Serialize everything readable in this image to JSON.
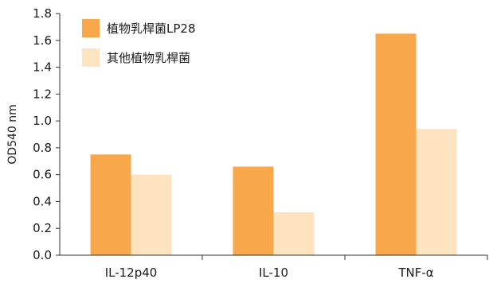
{
  "chart_data": {
    "type": "bar",
    "title": "",
    "xlabel": "",
    "ylabel": "OD540 nm",
    "ylim": [
      0,
      1.8
    ],
    "yticks": [
      "0.0",
      "0.2",
      "0.4",
      "0.6",
      "0.8",
      "1.0",
      "1.2",
      "1.4",
      "1.6",
      "1.8"
    ],
    "categories": [
      "IL-12p40",
      "IL-10",
      "TNF-α"
    ],
    "series": [
      {
        "name": "植物乳桿菌LP28",
        "color": "#F8A84A",
        "values": [
          0.75,
          0.66,
          1.65
        ]
      },
      {
        "name": "其他植物乳桿菌",
        "color": "#FDE3BF",
        "values": [
          0.6,
          0.32,
          0.94
        ]
      }
    ],
    "grid": false,
    "legend_position": "top-left"
  }
}
